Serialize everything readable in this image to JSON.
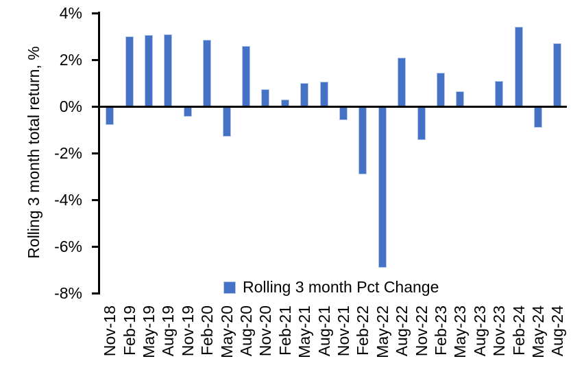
{
  "chart_data": {
    "type": "bar",
    "ylabel": "Rolling 3 month total return, %",
    "legend_label": "Rolling 3 month Pct Change",
    "legend_position": "bottom-center",
    "grid": false,
    "ylim": [
      -8,
      4
    ],
    "ytick_step": 2,
    "yticks": {
      "labels": [
        "4%",
        "2%",
        "0%",
        "-2%",
        "-4%",
        "-6%",
        "-8%"
      ],
      "values": [
        4,
        2,
        0,
        -2,
        -4,
        -6,
        -8
      ]
    },
    "categories": [
      "Nov-18",
      "Feb-19",
      "May-19",
      "Aug-19",
      "Nov-19",
      "Feb-20",
      "May-20",
      "Aug-20",
      "Nov-20",
      "Feb-21",
      "May-21",
      "Aug-21",
      "Nov-21",
      "Feb-22",
      "May-22",
      "Aug-22",
      "Nov-22",
      "Feb-23",
      "May-23",
      "Aug-23",
      "Nov-23",
      "Feb-24",
      "May-24",
      "Aug-24"
    ],
    "values": [
      -0.8,
      3.0,
      3.05,
      3.1,
      -0.45,
      2.85,
      -1.3,
      2.6,
      0.75,
      0.3,
      1.0,
      1.05,
      -0.6,
      -2.9,
      -6.9,
      2.1,
      -1.45,
      1.45,
      0.65,
      0.0,
      1.1,
      3.4,
      -0.9,
      2.7
    ],
    "colors": {
      "bar_fill": "#4472C4",
      "bar_border": "#B4C7E7",
      "axis": "#000000",
      "text": "#000000"
    }
  }
}
